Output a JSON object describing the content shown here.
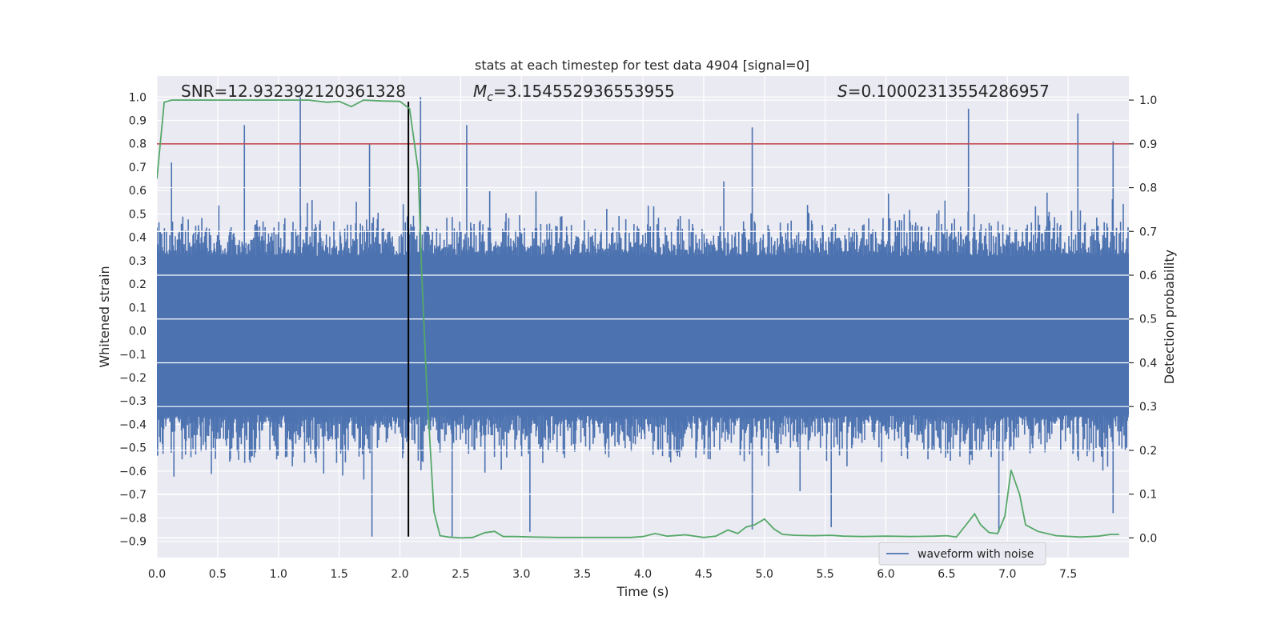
{
  "chart_data": {
    "type": "line",
    "title": "stats at each timestep for test data 4904 [signal=0]",
    "xlabel": "Time (s)",
    "ylabel_left": "Whitened strain",
    "ylabel_right": "Detection probability",
    "xlim": [
      0.0,
      8.0
    ],
    "ylim_left": [
      -0.97,
      1.09
    ],
    "ylim_right": [
      -0.045,
      1.055
    ],
    "x_ticks": [
      "0.0",
      "0.5",
      "1.0",
      "1.5",
      "2.0",
      "2.5",
      "3.0",
      "3.5",
      "4.0",
      "4.5",
      "5.0",
      "5.5",
      "6.0",
      "6.5",
      "7.0",
      "7.5"
    ],
    "y_left_ticks": [
      "1.0",
      "0.9",
      "0.8",
      "0.7",
      "0.6",
      "0.5",
      "0.4",
      "0.3",
      "0.2",
      "0.1",
      "0.0",
      "−0.1",
      "−0.2",
      "−0.3",
      "−0.4",
      "−0.5",
      "−0.6",
      "−0.7",
      "−0.8",
      "−0.9"
    ],
    "y_right_ticks": [
      "1.0",
      "0.9",
      "0.8",
      "0.7",
      "0.6",
      "0.5",
      "0.4",
      "0.3",
      "0.2",
      "0.1",
      "0.0"
    ],
    "annotations": {
      "snr": "SNR=12.932392120361328",
      "mc_symbol": "M",
      "mc_sub": "c",
      "mc_value": "=3.154552936553955",
      "s_symbol": "S",
      "s_value": "=0.10002313554286957"
    },
    "threshold": 0.9,
    "event_time": 2.07,
    "waveform": {
      "name": "waveform with noise",
      "color": "#4c72b0",
      "sample_rate": 512,
      "envelope": {
        "upper_typical": [
          0.32,
          0.52
        ],
        "lower_typical": [
          -0.36,
          -0.58
        ],
        "upper_peaks": [
          [
            0.12,
            0.72
          ],
          [
            0.72,
            0.88
          ],
          [
            1.18,
            1.0
          ],
          [
            1.75,
            0.8
          ],
          [
            2.17,
            1.0
          ],
          [
            2.55,
            0.88
          ],
          [
            4.9,
            0.87
          ],
          [
            6.68,
            0.95
          ],
          [
            7.58,
            0.93
          ],
          [
            7.87,
            0.81
          ]
        ],
        "lower_peaks": [
          [
            1.77,
            -0.88
          ],
          [
            2.43,
            -0.88
          ],
          [
            3.07,
            -0.86
          ],
          [
            4.9,
            -0.85
          ],
          [
            5.55,
            -0.84
          ],
          [
            6.93,
            -0.86
          ],
          [
            7.87,
            -0.78
          ]
        ]
      }
    },
    "probability": {
      "name": "detection probability",
      "color": "#55a868",
      "x": [
        0.0,
        0.06,
        0.12,
        0.25,
        0.5,
        0.75,
        1.0,
        1.25,
        1.4,
        1.5,
        1.6,
        1.7,
        1.85,
        2.0,
        2.08,
        2.15,
        2.18,
        2.22,
        2.28,
        2.33,
        2.4,
        2.5,
        2.6,
        2.7,
        2.78,
        2.85,
        2.95,
        3.1,
        3.3,
        3.5,
        3.7,
        3.9,
        4.0,
        4.1,
        4.2,
        4.35,
        4.5,
        4.6,
        4.7,
        4.78,
        4.85,
        4.92,
        5.0,
        5.08,
        5.15,
        5.25,
        5.4,
        5.55,
        5.65,
        5.8,
        6.0,
        6.2,
        6.4,
        6.5,
        6.58,
        6.66,
        6.73,
        6.78,
        6.85,
        6.92,
        6.98,
        7.03,
        7.1,
        7.15,
        7.25,
        7.4,
        7.6,
        7.75,
        7.85,
        7.92
      ]
    }
  }
}
